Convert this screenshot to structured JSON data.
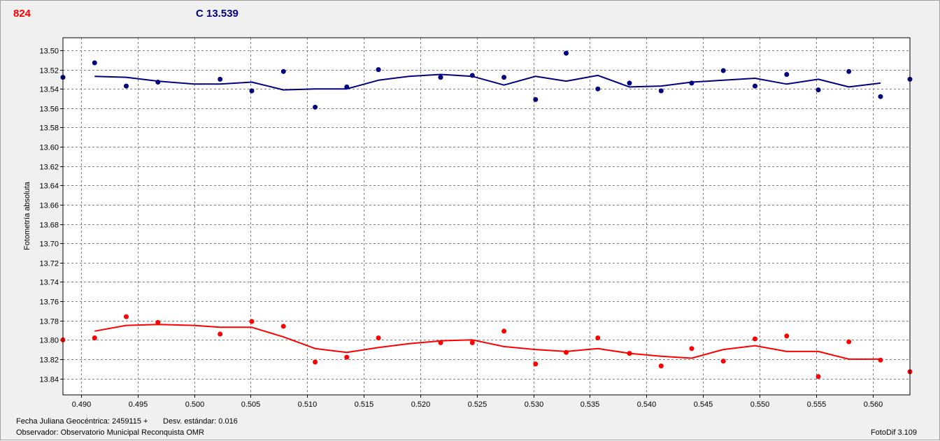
{
  "header": {
    "target_id": "824",
    "comparison_label": "C 13.539"
  },
  "footer": {
    "jd_label": "Fecha Juliana Geocéntrica: 2459115 +",
    "std_label": "Desv. estándar: 0.016",
    "observer_label": "Observador: Observatorio Municipal Reconquista OMR",
    "software_label": "FotoDif 3.109"
  },
  "colors": {
    "target": "#ff0000",
    "comparison": "#000080",
    "grid": "#808080"
  },
  "chart_data": {
    "type": "scatter",
    "title": "",
    "xlabel": "",
    "ylabel": "Fotometría absoluta",
    "xlim": [
      0.4884,
      0.5633
    ],
    "ylim": [
      13.487,
      13.857
    ],
    "y_inverted": true,
    "grid": true,
    "x_ticks": [
      0.49,
      0.495,
      0.5,
      0.505,
      0.51,
      0.515,
      0.52,
      0.525,
      0.53,
      0.535,
      0.54,
      0.545,
      0.55,
      0.555,
      0.56
    ],
    "x_tick_labels": [
      "0.490",
      "0.495",
      "0.500",
      "0.505",
      "0.510",
      "0.515",
      "0.520",
      "0.525",
      "0.530",
      "0.535",
      "0.540",
      "0.545",
      "0.550",
      "0.555",
      "0.560"
    ],
    "y_ticks": [
      13.5,
      13.52,
      13.54,
      13.56,
      13.58,
      13.6,
      13.62,
      13.64,
      13.66,
      13.68,
      13.7,
      13.72,
      13.74,
      13.76,
      13.78,
      13.8,
      13.82,
      13.84
    ],
    "y_tick_labels": [
      "13.50",
      "13.52",
      "13.54",
      "13.56",
      "13.58",
      "13.60",
      "13.62",
      "13.64",
      "13.66",
      "13.68",
      "13.70",
      "13.72",
      "13.74",
      "13.76",
      "13.78",
      "13.80",
      "13.82",
      "13.84"
    ],
    "x": [
      0.4884,
      0.4912,
      0.494,
      0.4968,
      0.5023,
      0.5051,
      0.5079,
      0.5107,
      0.5135,
      0.5163,
      0.5218,
      0.5246,
      0.5274,
      0.5302,
      0.5329,
      0.5357,
      0.5385,
      0.5413,
      0.544,
      0.5468,
      0.5496,
      0.5524,
      0.5552,
      0.5579,
      0.5607,
      0.5633
    ],
    "series": [
      {
        "role": "comparison",
        "color": "#000080",
        "points": [
          13.528,
          13.513,
          13.537,
          13.533,
          13.53,
          13.542,
          13.522,
          13.559,
          13.538,
          13.52,
          13.528,
          13.526,
          13.528,
          13.551,
          13.503,
          13.54,
          13.534,
          13.542,
          13.534,
          13.521,
          13.537,
          13.525,
          13.541,
          13.522,
          13.548,
          13.53
        ],
        "trend_x": [
          0.4912,
          0.494,
          0.4968,
          0.5,
          0.5023,
          0.5051,
          0.5079,
          0.5107,
          0.5135,
          0.5163,
          0.519,
          0.5218,
          0.5246,
          0.5274,
          0.5302,
          0.5329,
          0.5357,
          0.5385,
          0.5413,
          0.544,
          0.5468,
          0.5496,
          0.5524,
          0.5552,
          0.5579,
          0.5607
        ],
        "trend": [
          13.527,
          13.528,
          13.532,
          13.535,
          13.535,
          13.533,
          13.541,
          13.54,
          13.54,
          13.531,
          13.527,
          13.525,
          13.527,
          13.536,
          13.527,
          13.532,
          13.526,
          13.538,
          13.537,
          13.533,
          13.531,
          13.529,
          13.535,
          13.53,
          13.538,
          13.534
        ]
      },
      {
        "role": "target",
        "color": "#ff0000",
        "points": [
          13.8,
          13.798,
          13.776,
          13.782,
          13.794,
          13.781,
          13.786,
          13.823,
          13.818,
          13.798,
          13.803,
          13.803,
          13.791,
          13.825,
          13.813,
          13.798,
          13.814,
          13.827,
          13.809,
          13.822,
          13.799,
          13.796,
          13.838,
          13.802,
          13.821,
          13.833
        ],
        "trend_x": [
          0.4912,
          0.494,
          0.4968,
          0.5,
          0.5023,
          0.5051,
          0.5079,
          0.5107,
          0.5135,
          0.5163,
          0.519,
          0.5218,
          0.5246,
          0.5274,
          0.5302,
          0.5329,
          0.5357,
          0.5385,
          0.5413,
          0.544,
          0.5468,
          0.5496,
          0.5524,
          0.5552,
          0.5579,
          0.5607
        ],
        "trend": [
          13.791,
          13.785,
          13.784,
          13.785,
          13.787,
          13.787,
          13.797,
          13.809,
          13.813,
          13.808,
          13.804,
          13.801,
          13.8,
          13.807,
          13.81,
          13.812,
          13.809,
          13.814,
          13.817,
          13.819,
          13.81,
          13.806,
          13.812,
          13.812,
          13.82,
          13.82
        ]
      }
    ]
  }
}
